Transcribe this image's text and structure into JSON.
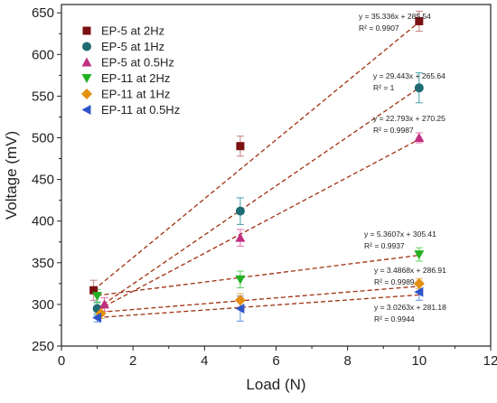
{
  "chart_data": {
    "type": "scatter",
    "xlabel": "Load (N)",
    "ylabel": "Voltage (mV)",
    "xlim": [
      0,
      12
    ],
    "ylim": [
      250,
      660
    ],
    "xticks": [
      0,
      2,
      4,
      6,
      8,
      10,
      12
    ],
    "yticks": [
      250,
      300,
      350,
      400,
      450,
      500,
      550,
      600,
      650
    ],
    "grid": false,
    "legend_position": "top-left",
    "series": [
      {
        "name": "EP-5 at 2Hz",
        "marker": "square",
        "color": "#7b1010",
        "points": [
          {
            "x": 0.9,
            "y": 317,
            "err": 12
          },
          {
            "x": 5,
            "y": 490,
            "err": 12
          },
          {
            "x": 10,
            "y": 640,
            "err": 12
          }
        ],
        "fit": {
          "slope": 35.336,
          "intercept": 285.54
        },
        "equation": "y = 35.336x + 285.54",
        "r2": "R² = 0.9907"
      },
      {
        "name": "EP-5 at 1Hz",
        "marker": "circle",
        "color": "#1f6b73",
        "points": [
          {
            "x": 1,
            "y": 295,
            "err": 8
          },
          {
            "x": 5,
            "y": 412,
            "err": 16
          },
          {
            "x": 10,
            "y": 560,
            "err": 18
          }
        ],
        "fit": {
          "slope": 29.443,
          "intercept": 265.64
        },
        "equation": "y = 29.443x + 265.64",
        "r2": "R² = 1"
      },
      {
        "name": "EP-5 at 0.5Hz",
        "marker": "triangle-up",
        "color": "#c0307f",
        "points": [
          {
            "x": 1.2,
            "y": 300,
            "err": 8
          },
          {
            "x": 5,
            "y": 380,
            "err": 10
          },
          {
            "x": 10,
            "y": 500,
            "err": 6
          }
        ],
        "fit": {
          "slope": 22.793,
          "intercept": 270.25
        },
        "equation": "y = 22.793x + 270.25",
        "r2": "R² = 0.9987"
      },
      {
        "name": "EP-11 at 2Hz",
        "marker": "triangle-down",
        "color": "#22b022",
        "points": [
          {
            "x": 1,
            "y": 310,
            "err": 8
          },
          {
            "x": 5,
            "y": 330,
            "err": 10
          },
          {
            "x": 10,
            "y": 360,
            "err": 8
          }
        ],
        "fit": {
          "slope": 5.3607,
          "intercept": 305.41
        },
        "equation": "y = 5.3607x + 305.41",
        "r2": "R² = 0.9937"
      },
      {
        "name": "EP-11 at 1Hz",
        "marker": "diamond",
        "color": "#e58f0e",
        "points": [
          {
            "x": 1.1,
            "y": 289,
            "err": 6
          },
          {
            "x": 5,
            "y": 305,
            "err": 8
          },
          {
            "x": 10,
            "y": 325,
            "err": 6
          }
        ],
        "fit": {
          "slope": 3.4868,
          "intercept": 286.91
        },
        "equation": "y = 3.4868x + 286.91",
        "r2": "R² = 0.9989"
      },
      {
        "name": "EP-11 at 0.5Hz",
        "marker": "triangle-left",
        "color": "#2f54c8",
        "points": [
          {
            "x": 1,
            "y": 284,
            "err": 5
          },
          {
            "x": 5,
            "y": 295,
            "err": 15
          },
          {
            "x": 10,
            "y": 315,
            "err": 10
          }
        ],
        "fit": {
          "slope": 3.0263,
          "intercept": 281.18
        },
        "equation": "y = 3.0263x + 281.18",
        "r2": "R² = 0.9944"
      }
    ],
    "fit_line_color": "#a03010",
    "error_bar_colors": [
      "#c08080",
      "#40a0a8",
      "#e070b0",
      "#60d060",
      "#e8b060",
      "#6090e0"
    ]
  }
}
